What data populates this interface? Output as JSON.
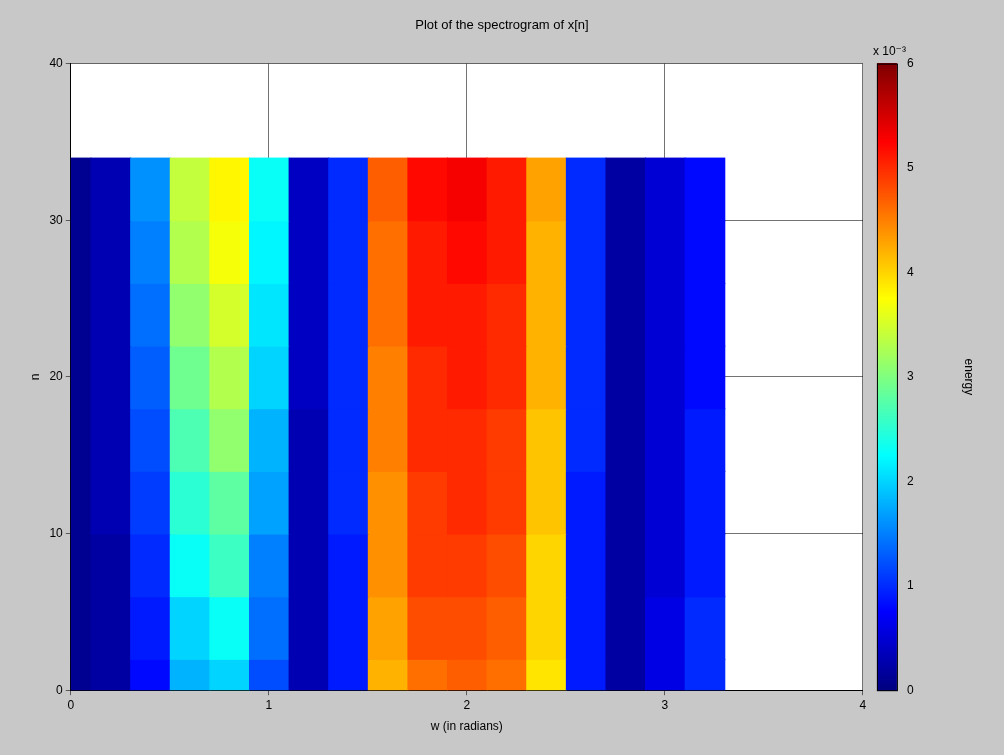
{
  "chart_data": {
    "type": "heatmap",
    "title": "Plot of the spectrogram of x[n]",
    "x_label": "w (in radians)",
    "y_label": "n",
    "x": [
      0,
      0.2,
      0.4,
      0.6,
      0.8,
      1.0,
      1.2,
      1.4,
      1.6,
      1.8,
      2.0,
      2.2,
      2.4,
      2.6,
      2.8,
      3.0,
      3.2
    ],
    "y": [
      0,
      4,
      8,
      12,
      16,
      20,
      24,
      28,
      32
    ],
    "cells": [
      [
        0.1,
        0.2,
        0.8,
        1.8,
        2.0,
        1.2,
        0.3,
        0.9,
        4.2,
        4.6,
        4.7,
        4.6,
        3.9,
        0.9,
        0.2,
        0.6,
        1.0
      ],
      [
        0.1,
        0.2,
        0.9,
        2.0,
        2.3,
        1.4,
        0.3,
        0.9,
        4.3,
        4.8,
        4.8,
        4.7,
        4.0,
        0.9,
        0.2,
        0.6,
        1.0
      ],
      [
        0.1,
        0.2,
        1.0,
        2.3,
        2.6,
        1.5,
        0.3,
        0.9,
        4.4,
        4.9,
        4.9,
        4.8,
        4.0,
        0.9,
        0.2,
        0.5,
        0.9
      ],
      [
        0.1,
        0.3,
        1.1,
        2.5,
        2.8,
        1.7,
        0.3,
        1.0,
        4.4,
        4.9,
        5.0,
        4.9,
        4.1,
        0.9,
        0.2,
        0.5,
        0.9
      ],
      [
        0.1,
        0.3,
        1.2,
        2.7,
        3.1,
        1.8,
        0.3,
        1.0,
        4.5,
        5.0,
        5.0,
        4.9,
        4.1,
        1.0,
        0.2,
        0.5,
        0.9
      ],
      [
        0.1,
        0.3,
        1.3,
        2.9,
        3.3,
        2.0,
        0.4,
        1.0,
        4.5,
        5.0,
        5.1,
        5.0,
        4.2,
        1.0,
        0.2,
        0.5,
        0.8
      ],
      [
        0.1,
        0.3,
        1.4,
        3.1,
        3.5,
        2.1,
        0.4,
        1.0,
        4.6,
        5.1,
        5.1,
        5.0,
        4.2,
        1.0,
        0.2,
        0.5,
        0.8
      ],
      [
        0.1,
        0.3,
        1.5,
        3.3,
        3.7,
        2.2,
        0.4,
        1.0,
        4.6,
        5.1,
        5.2,
        5.1,
        4.2,
        1.0,
        0.2,
        0.5,
        0.8
      ],
      [
        0.1,
        0.3,
        1.6,
        3.4,
        3.8,
        2.3,
        0.4,
        1.0,
        4.7,
        5.2,
        5.3,
        5.1,
        4.3,
        1.0,
        0.2,
        0.5,
        0.8
      ]
    ],
    "xlim": [
      0,
      4
    ],
    "xticks": [
      0,
      1,
      2,
      3,
      4
    ],
    "ylim": [
      0,
      40
    ],
    "yticks": [
      0,
      10,
      20,
      30,
      40
    ],
    "colorbar": {
      "label": "energy",
      "multiplier": "x 10⁻³",
      "lim": [
        0,
        6
      ],
      "ticks": [
        0,
        1,
        2,
        3,
        4,
        5,
        6
      ]
    },
    "grid": true
  }
}
